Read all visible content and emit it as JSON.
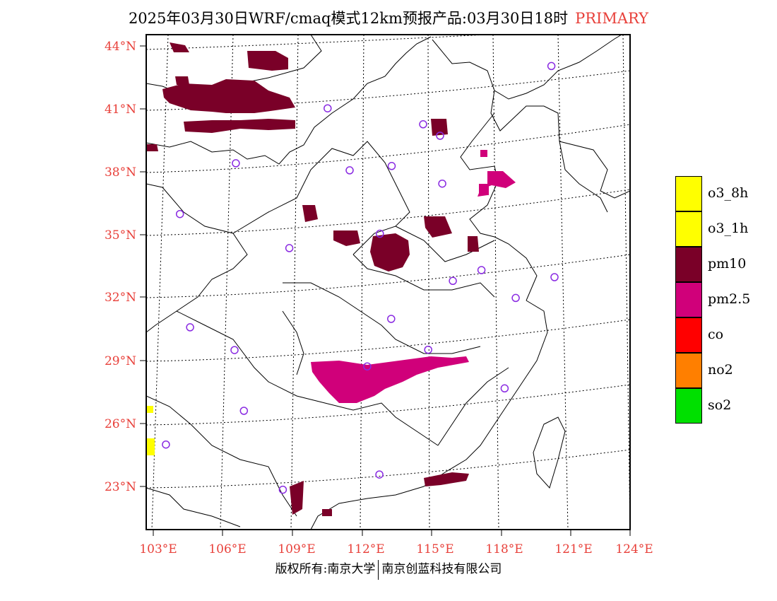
{
  "header": {
    "title": "2025年03月30日WRF/cmaq模式12km预报产品:03月30日18时",
    "tag": "PRIMARY"
  },
  "axes": {
    "lat_labels": [
      "44°N",
      "41°N",
      "38°N",
      "35°N",
      "32°N",
      "29°N",
      "26°N",
      "23°N"
    ],
    "lon_labels": [
      "103°E",
      "106°E",
      "109°E",
      "112°E",
      "115°E",
      "118°E",
      "121°E",
      "124°E"
    ]
  },
  "legend": {
    "items": [
      {
        "label": "o3_8h",
        "color": "#ffff00"
      },
      {
        "label": "o3_1h",
        "color": "#ffff00"
      },
      {
        "label": "pm10",
        "color": "#7a0028"
      },
      {
        "label": "pm2.5",
        "color": "#d0007a"
      },
      {
        "label": "co",
        "color": "#ff0000"
      },
      {
        "label": "no2",
        "color": "#ff7f00"
      },
      {
        "label": "so2",
        "color": "#00e000"
      }
    ]
  },
  "colors": {
    "pm10": "#7a0028",
    "pm25": "#d0007a",
    "o3": "#ffff00",
    "station": "#8a2be2",
    "tick": "#e8403a"
  },
  "stations": [
    {
      "lon": 119.2,
      "lat": 42.2
    },
    {
      "lon": 110.5,
      "lat": 40.9
    },
    {
      "lon": 114.3,
      "lat": 39.9
    },
    {
      "lon": 115.0,
      "lat": 39.3
    },
    {
      "lon": 106.8,
      "lat": 38.4
    },
    {
      "lon": 111.4,
      "lat": 37.9
    },
    {
      "lon": 113.1,
      "lat": 38.0
    },
    {
      "lon": 115.2,
      "lat": 37.0
    },
    {
      "lon": 104.4,
      "lat": 36.0
    },
    {
      "lon": 112.7,
      "lat": 34.8
    },
    {
      "lon": 108.9,
      "lat": 34.3
    },
    {
      "lon": 117.1,
      "lat": 32.7
    },
    {
      "lon": 115.9,
      "lat": 32.3
    },
    {
      "lon": 120.3,
      "lat": 32.0
    },
    {
      "lon": 118.7,
      "lat": 31.2
    },
    {
      "lon": 104.5,
      "lat": 30.6
    },
    {
      "lon": 113.3,
      "lat": 30.7
    },
    {
      "lon": 106.4,
      "lat": 29.5
    },
    {
      "lon": 115.0,
      "lat": 29.1
    },
    {
      "lon": 112.3,
      "lat": 28.5
    },
    {
      "lon": 118.6,
      "lat": 26.9
    },
    {
      "lon": 106.7,
      "lat": 26.6
    },
    {
      "lon": 103.0,
      "lat": 25.0
    },
    {
      "lon": 108.4,
      "lat": 22.8
    },
    {
      "lon": 113.0,
      "lat": 23.3
    }
  ],
  "footer": {
    "left": "版权所有:南京大学",
    "right": "南京创蓝科技有限公司"
  }
}
